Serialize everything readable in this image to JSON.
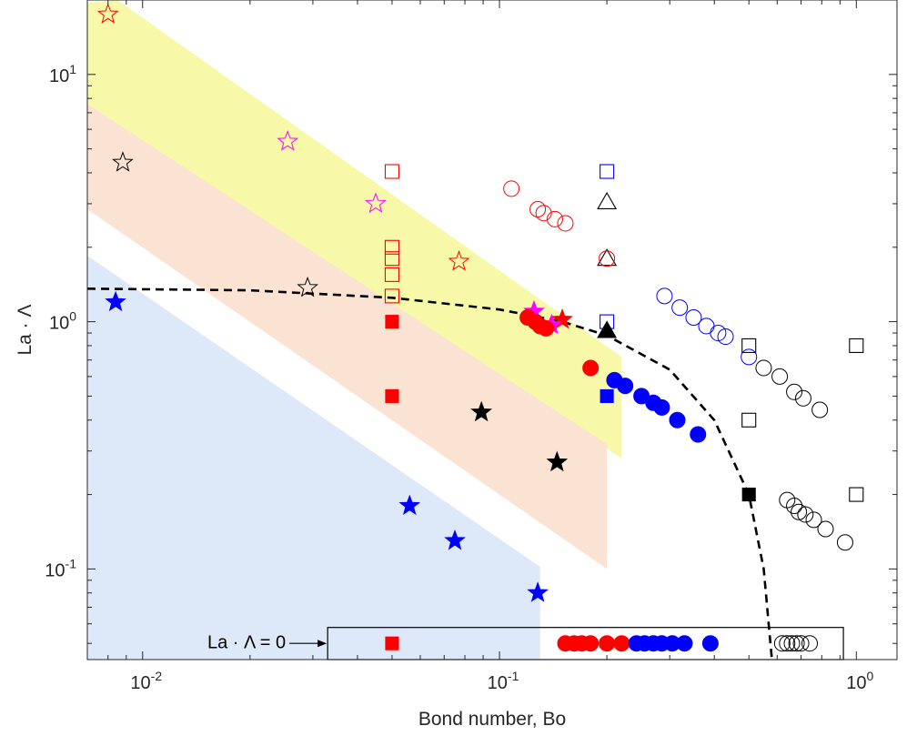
{
  "chart_data": {
    "type": "scatter",
    "title": "",
    "xlabel": "Bond number, Bo",
    "ylabel": "La · Λ",
    "x_scale": "log",
    "y_scale": "log",
    "xlim": [
      0.007,
      1.3
    ],
    "ylim": [
      0.043,
      20
    ],
    "grid": false,
    "x_ticks": [
      {
        "value": 0.01,
        "base": "10",
        "exp": "-2"
      },
      {
        "value": 0.1,
        "base": "10",
        "exp": "-1"
      },
      {
        "value": 1,
        "base": "10",
        "exp": "0"
      }
    ],
    "y_ticks": [
      {
        "value": 0.1,
        "base": "10",
        "exp": "-1"
      },
      {
        "value": 1,
        "base": "10",
        "exp": "0"
      },
      {
        "value": 10,
        "base": "10",
        "exp": "1"
      }
    ],
    "regions": [
      {
        "color": "#f7f9a8",
        "polygon": [
          [
            0.007,
            19.5
          ],
          [
            0.0085,
            20
          ],
          [
            0.22,
            0.72
          ],
          [
            0.22,
            0.28
          ],
          [
            0.007,
            7.6
          ]
        ]
      },
      {
        "color": "#fae3d2",
        "polygon": [
          [
            0.007,
            7.6
          ],
          [
            0.2,
            0.32
          ],
          [
            0.2,
            0.1
          ],
          [
            0.007,
            2.85
          ]
        ]
      },
      {
        "color": "#dde9f8",
        "polygon": [
          [
            0.007,
            1.85
          ],
          [
            0.13,
            0.102
          ],
          [
            0.13,
            0.043
          ],
          [
            0.007,
            0.043
          ]
        ]
      }
    ],
    "fit_curve": {
      "style": "dashed",
      "color": "#000000",
      "points": [
        [
          0.007,
          1.36
        ],
        [
          0.02,
          1.34
        ],
        [
          0.05,
          1.25
        ],
        [
          0.1,
          1.12
        ],
        [
          0.15,
          1.0
        ],
        [
          0.2,
          0.88
        ],
        [
          0.3,
          0.64
        ],
        [
          0.4,
          0.4
        ],
        [
          0.5,
          0.2
        ],
        [
          0.55,
          0.1
        ],
        [
          0.58,
          0.043
        ]
      ]
    },
    "zero_box": {
      "label": "La · Λ = 0",
      "x_range": [
        0.033,
        0.92
      ],
      "y_range": [
        0.043,
        0.058
      ],
      "y_display": 0.05
    },
    "series": [
      {
        "marker": "star",
        "filled": false,
        "color": "#ff0000",
        "points": [
          [
            0.008,
            17.5
          ],
          [
            0.077,
            1.75
          ]
        ]
      },
      {
        "marker": "star",
        "filled": false,
        "color": "#ff00ff",
        "points": [
          [
            0.0255,
            5.35
          ],
          [
            0.045,
            3.0
          ]
        ]
      },
      {
        "marker": "star",
        "filled": false,
        "color": "#000000",
        "points": [
          [
            0.0088,
            4.4
          ],
          [
            0.029,
            1.37
          ]
        ]
      },
      {
        "marker": "star",
        "filled": true,
        "color": "#0000ff",
        "points": [
          [
            0.0084,
            1.2
          ],
          [
            0.056,
            0.18
          ],
          [
            0.075,
            0.13
          ],
          [
            0.128,
            0.08
          ]
        ]
      },
      {
        "marker": "star",
        "filled": true,
        "color": "#000000",
        "points": [
          [
            0.089,
            0.43
          ],
          [
            0.145,
            0.27
          ]
        ]
      },
      {
        "marker": "star",
        "filled": true,
        "color": "#ff0000",
        "points": [
          [
            0.15,
            1.02
          ]
        ]
      },
      {
        "marker": "star",
        "filled": true,
        "color": "#ff00ff",
        "points": [
          [
            0.125,
            1.1
          ],
          [
            0.14,
            0.97
          ]
        ]
      },
      {
        "marker": "square",
        "filled": false,
        "color": "#ff0000",
        "points": [
          [
            0.05,
            4.05
          ],
          [
            0.05,
            2.0
          ],
          [
            0.05,
            1.8
          ],
          [
            0.05,
            1.55
          ],
          [
            0.05,
            1.27
          ]
        ]
      },
      {
        "marker": "square",
        "filled": true,
        "color": "#ff0000",
        "points": [
          [
            0.05,
            1.0
          ],
          [
            0.05,
            0.5
          ],
          [
            0.05,
            0.05
          ]
        ]
      },
      {
        "marker": "square",
        "filled": false,
        "color": "#0000ff",
        "points": [
          [
            0.2,
            4.05
          ],
          [
            0.2,
            1.0
          ]
        ]
      },
      {
        "marker": "square",
        "filled": true,
        "color": "#0000ff",
        "points": [
          [
            0.2,
            0.5
          ]
        ]
      },
      {
        "marker": "square",
        "filled": false,
        "color": "#000000",
        "points": [
          [
            0.5,
            0.8
          ],
          [
            0.5,
            0.4
          ],
          [
            1.0,
            0.8
          ],
          [
            1.0,
            0.2
          ]
        ]
      },
      {
        "marker": "square",
        "filled": true,
        "color": "#000000",
        "points": [
          [
            0.5,
            0.2
          ]
        ]
      },
      {
        "marker": "triangle",
        "filled": false,
        "color": "#000000",
        "points": [
          [
            0.2,
            3.05
          ],
          [
            0.2,
            1.8
          ]
        ]
      },
      {
        "marker": "triangle",
        "filled": true,
        "color": "#000000",
        "points": [
          [
            0.2,
            0.92
          ]
        ]
      },
      {
        "marker": "circle",
        "filled": false,
        "color": "#ff0000",
        "points": [
          [
            0.108,
            3.45
          ],
          [
            0.128,
            2.85
          ],
          [
            0.133,
            2.75
          ],
          [
            0.143,
            2.6
          ],
          [
            0.153,
            2.5
          ],
          [
            0.2,
            1.8
          ]
        ]
      },
      {
        "marker": "circle",
        "filled": false,
        "color": "#0000ff",
        "points": [
          [
            0.29,
            1.27
          ],
          [
            0.32,
            1.14
          ],
          [
            0.35,
            1.04
          ],
          [
            0.38,
            0.96
          ],
          [
            0.41,
            0.9
          ],
          [
            0.43,
            0.87
          ],
          [
            0.5,
            0.72
          ]
        ]
      },
      {
        "marker": "circle",
        "filled": false,
        "color": "#000000",
        "points": [
          [
            0.55,
            0.65
          ],
          [
            0.61,
            0.6
          ],
          [
            0.67,
            0.52
          ],
          [
            0.71,
            0.49
          ],
          [
            0.79,
            0.44
          ],
          [
            0.64,
            0.19
          ],
          [
            0.67,
            0.18
          ],
          [
            0.69,
            0.17
          ],
          [
            0.72,
            0.166
          ],
          [
            0.76,
            0.158
          ],
          [
            0.82,
            0.145
          ],
          [
            0.93,
            0.128
          ]
        ]
      },
      {
        "marker": "circle",
        "filled": false,
        "color": "#000000",
        "points": [
          [
            0.62,
            0.05
          ],
          [
            0.64,
            0.05
          ],
          [
            0.66,
            0.05
          ],
          [
            0.68,
            0.05
          ],
          [
            0.7,
            0.05
          ],
          [
            0.74,
            0.05
          ]
        ]
      },
      {
        "marker": "circle",
        "filled": true,
        "color": "#ff0000",
        "points": [
          [
            0.12,
            1.04
          ],
          [
            0.126,
            1.0
          ],
          [
            0.13,
            0.96
          ],
          [
            0.135,
            0.94
          ],
          [
            0.18,
            0.65
          ]
        ]
      },
      {
        "marker": "circle",
        "filled": true,
        "color": "#0000ff",
        "points": [
          [
            0.21,
            0.58
          ],
          [
            0.225,
            0.55
          ],
          [
            0.25,
            0.5
          ],
          [
            0.27,
            0.47
          ],
          [
            0.285,
            0.45
          ],
          [
            0.315,
            0.4
          ],
          [
            0.36,
            0.35
          ]
        ]
      },
      {
        "marker": "circle",
        "filled": true,
        "color": "#ff0000",
        "points": [
          [
            0.153,
            0.05
          ],
          [
            0.162,
            0.05
          ],
          [
            0.17,
            0.05
          ],
          [
            0.18,
            0.05
          ],
          [
            0.2,
            0.05
          ],
          [
            0.22,
            0.05
          ]
        ]
      },
      {
        "marker": "circle",
        "filled": true,
        "color": "#0000ff",
        "points": [
          [
            0.242,
            0.05
          ],
          [
            0.255,
            0.05
          ],
          [
            0.27,
            0.05
          ],
          [
            0.285,
            0.05
          ],
          [
            0.305,
            0.05
          ],
          [
            0.33,
            0.05
          ],
          [
            0.39,
            0.05
          ]
        ]
      }
    ]
  }
}
